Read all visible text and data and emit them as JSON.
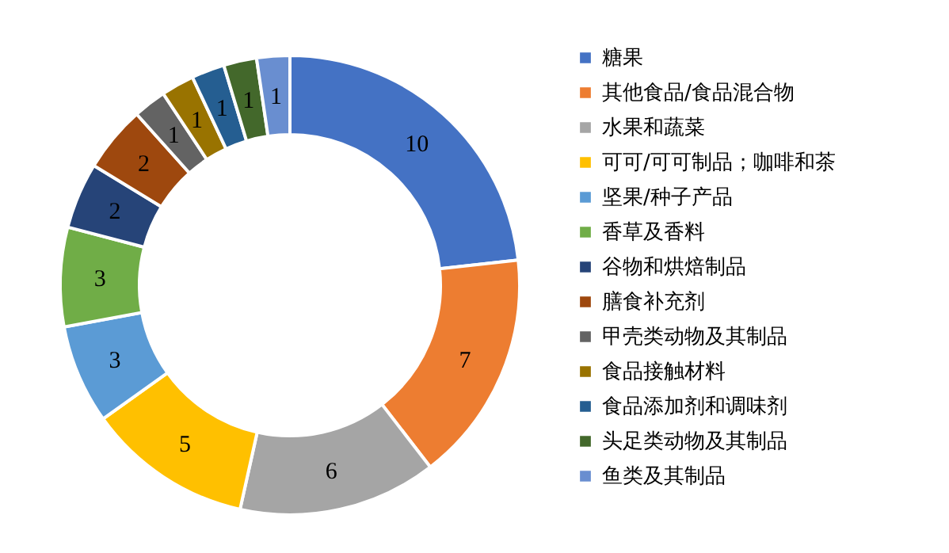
{
  "chart_data": {
    "type": "donut",
    "categories": [
      "糖果",
      "其他食品/食品混合物",
      "水果和蔬菜",
      "可可/可可制品；咖啡和茶",
      "坚果/种子产品",
      "香草及香料",
      "谷物和烘焙制品",
      "膳食补充剂",
      "甲壳类动物及其制品",
      "食品接触材料",
      "食品添加剂和调味剂",
      "头足类动物及其制品",
      "鱼类及其制品"
    ],
    "values": [
      10,
      7,
      6,
      5,
      3,
      3,
      2,
      2,
      1,
      1,
      1,
      1,
      1
    ],
    "colors": [
      "#4472c4",
      "#ed7d31",
      "#a5a5a5",
      "#ffc000",
      "#5b9bd5",
      "#70ad47",
      "#264478",
      "#9e480e",
      "#636363",
      "#997300",
      "#255e91",
      "#43682b",
      "#698ed0"
    ],
    "data_labels": true,
    "legend": "right"
  }
}
